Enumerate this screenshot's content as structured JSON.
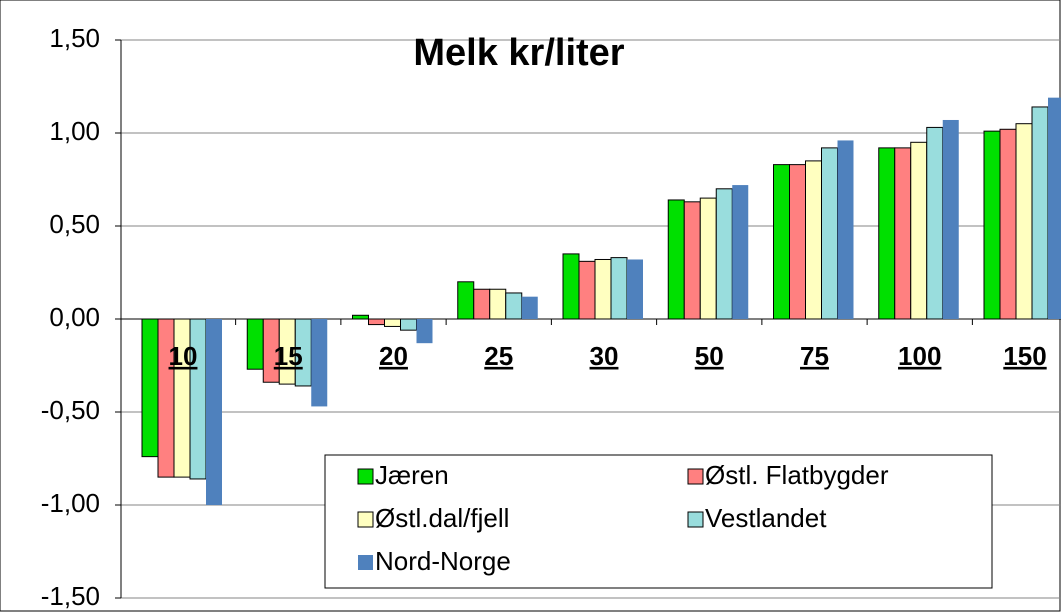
{
  "chart_data": {
    "type": "bar",
    "title": "Melk kr/liter",
    "categories": [
      "10",
      "15",
      "20",
      "25",
      "30",
      "50",
      "75",
      "100",
      "150"
    ],
    "series": [
      {
        "name": "Jæren",
        "color": "#00e000",
        "values": [
          -0.74,
          -0.27,
          0.02,
          0.2,
          0.35,
          0.64,
          0.83,
          0.92,
          1.01
        ]
      },
      {
        "name": "Østl. Flatbygder",
        "color": "#ff8080",
        "values": [
          -0.85,
          -0.34,
          -0.03,
          0.16,
          0.31,
          0.63,
          0.83,
          0.92,
          1.02
        ]
      },
      {
        "name": "Østl.dal/fjell",
        "color": "#ffffc0",
        "values": [
          -0.85,
          -0.35,
          -0.04,
          0.16,
          0.32,
          0.65,
          0.85,
          0.95,
          1.05
        ]
      },
      {
        "name": "Vestlandet",
        "color": "#99dddd",
        "values": [
          -0.86,
          -0.36,
          -0.06,
          0.14,
          0.33,
          0.7,
          0.92,
          1.03,
          1.14
        ]
      },
      {
        "name": "Nord-Norge",
        "color": "#4f81bd",
        "values": [
          -1.0,
          -0.47,
          -0.13,
          0.12,
          0.32,
          0.72,
          0.96,
          1.07,
          1.19
        ]
      }
    ],
    "ylim": [
      -1.5,
      1.5
    ],
    "yticks": [
      {
        "value": -1.5,
        "label": "-1,50"
      },
      {
        "value": -1.0,
        "label": "-1,00"
      },
      {
        "value": -0.5,
        "label": "-0,50"
      },
      {
        "value": 0,
        "label": "0,00"
      },
      {
        "value": 0.5,
        "label": "0,50"
      },
      {
        "value": 1.0,
        "label": "1,00"
      },
      {
        "value": 1.5,
        "label": "1,50"
      }
    ],
    "grid": true
  }
}
